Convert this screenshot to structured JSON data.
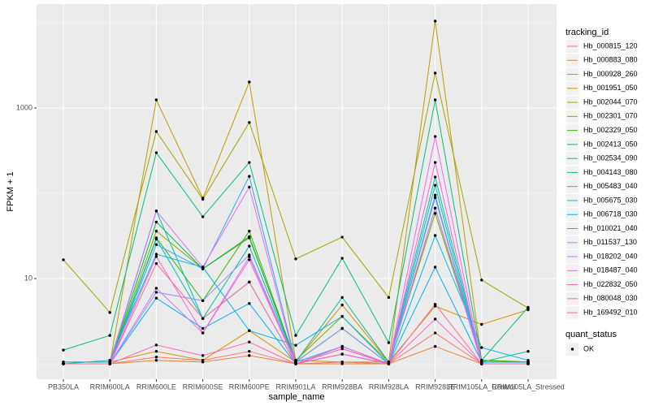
{
  "chart_data": {
    "type": "line",
    "x_label": "sample_name",
    "y_label": "FPKM + 1",
    "categories": [
      "PB350LA",
      "RRIM600LA",
      "RRIM600LE",
      "RRIM600SE",
      "RRIM600PE",
      "RRIM901LA",
      "RRIM928BA",
      "RRIM928LA",
      "RRIM928LE",
      "RRIM105LA_Control",
      "RRIM105LA_Stressed"
    ],
    "log_y": true,
    "grid": true,
    "legend_position": "right",
    "ylim": [
      0.66,
      16550
    ],
    "yticks": [
      10,
      1000
    ],
    "y_minor_gridlines": [
      1,
      100,
      10000
    ],
    "legend_title": "tracking_id",
    "point_legend_title": "quant_status",
    "point_legend_label": "OK",
    "point_color": "#000000",
    "series": [
      {
        "name": "Hb_000815_120",
        "color": "#F8766D",
        "values": [
          1,
          1,
          1.2,
          1.1,
          1.4,
          1,
          1.05,
          1,
          2.3,
          1,
          1
        ]
      },
      {
        "name": "Hb_000883_080",
        "color": "#EA8331",
        "values": [
          1,
          1,
          1.1,
          1.05,
          1.25,
          1,
          1,
          1,
          1.6,
          1,
          1
        ]
      },
      {
        "name": "Hb_000928_260",
        "color": "#D89000",
        "values": [
          1.05,
          1.05,
          1.4,
          1.1,
          2.45,
          1.05,
          4.9,
          1.05,
          4.75,
          2.9,
          4.3
        ]
      },
      {
        "name": "Hb_001951_050",
        "color": "#C09B00",
        "values": [
          1,
          1,
          1245,
          87.7,
          2018,
          1.1,
          1.05,
          1.05,
          10450,
          1.1,
          1.05
        ]
      },
      {
        "name": "Hb_002044_070",
        "color": "#A3A500",
        "values": [
          16.6,
          4,
          530,
          85,
          676,
          17,
          30.6,
          6,
          2570,
          9.6,
          4.5
        ]
      },
      {
        "name": "Hb_002301_070",
        "color": "#7CAE00",
        "values": [
          1,
          1,
          36,
          13,
          30,
          1.1,
          3.6,
          1.05,
          58,
          1.1,
          1.05
        ]
      },
      {
        "name": "Hb_002329_050",
        "color": "#39B600",
        "values": [
          1,
          1,
          30,
          5.5,
          36,
          1.05,
          2.6,
          1,
          67,
          1.1,
          1.05
        ]
      },
      {
        "name": "Hb_002413_050",
        "color": "#00BB4E",
        "values": [
          1,
          1,
          46,
          13,
          31,
          1.05,
          2.6,
          1,
          89,
          1.05,
          1.05
        ]
      },
      {
        "name": "Hb_002534_090",
        "color": "#00BF7D",
        "values": [
          1.45,
          2.15,
          299,
          53,
          230,
          2.15,
          17.3,
          1.77,
          1245,
          1.1,
          4.6
        ]
      },
      {
        "name": "Hb_004143_080",
        "color": "#00C1A3",
        "values": [
          1.05,
          1.05,
          62,
          3.4,
          24,
          1.05,
          6,
          1.05,
          155,
          1.05,
          1.4
        ]
      },
      {
        "name": "Hb_005483_040",
        "color": "#00BFC4",
        "values": [
          1,
          1,
          29,
          3.4,
          9.1,
          1,
          1.6,
          1,
          124,
          1,
          1
        ]
      },
      {
        "name": "Hb_005675_030",
        "color": "#00BAE0",
        "values": [
          1,
          1.1,
          19.3,
          13.6,
          2.45,
          1.65,
          3.6,
          1,
          32,
          1.55,
          1.1
        ]
      },
      {
        "name": "Hb_006718_030",
        "color": "#00B0F6",
        "values": [
          1,
          1,
          5.9,
          2.6,
          5.1,
          1,
          1.3,
          1,
          13.6,
          1.05,
          1.05
        ]
      },
      {
        "name": "Hb_010021_040",
        "color": "#35A2FF",
        "values": [
          1,
          1,
          25,
          13,
          158,
          1.05,
          1.6,
          1,
          95,
          1,
          1
        ]
      },
      {
        "name": "Hb_011537_130",
        "color": "#9590FF",
        "values": [
          1,
          1,
          6.9,
          5.5,
          18.9,
          1.05,
          2.6,
          1,
          89,
          1,
          1
        ]
      },
      {
        "name": "Hb_018202_040",
        "color": "#C77CFF",
        "values": [
          1,
          1,
          7.7,
          2.3,
          18,
          1,
          1.3,
          1,
          67,
          1,
          1
        ]
      },
      {
        "name": "Hb_018487_040",
        "color": "#E76BF3",
        "values": [
          1,
          1,
          62,
          13.6,
          118,
          1,
          1.6,
          1,
          464,
          1,
          1
        ]
      },
      {
        "name": "Hb_022832_050",
        "color": "#FA62DB",
        "values": [
          1,
          1,
          18.1,
          2.3,
          16.6,
          1,
          1.5,
          1,
          230,
          1,
          1
        ]
      },
      {
        "name": "Hb_080048_030",
        "color": "#FF62BC",
        "values": [
          1,
          1,
          1.66,
          1.25,
          1.8,
          1,
          1.3,
          1,
          3.35,
          1,
          1
        ]
      },
      {
        "name": "Hb_169492_010",
        "color": "#FF6A98",
        "values": [
          1,
          1,
          15,
          3.4,
          9.1,
          1,
          1.5,
          1,
          5,
          1,
          1
        ]
      }
    ]
  }
}
